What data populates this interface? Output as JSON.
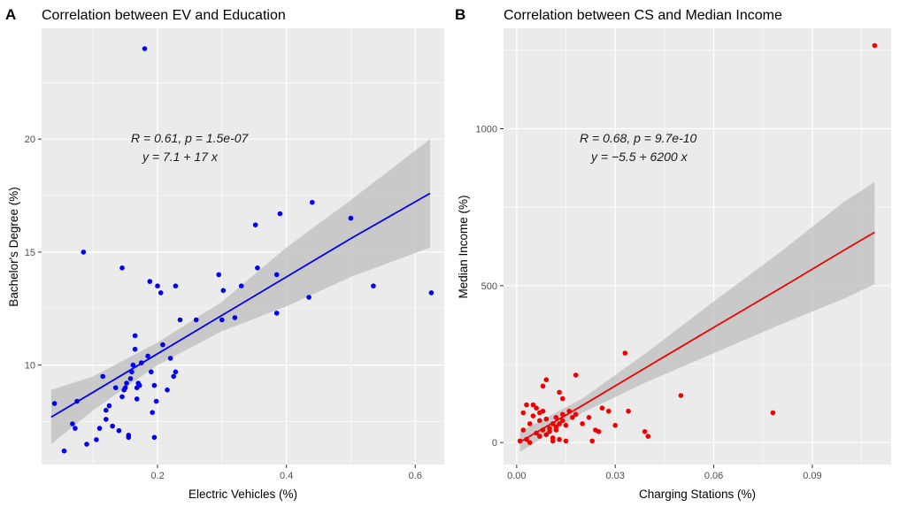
{
  "chart_data": [
    {
      "panel_tag": "A",
      "type": "scatter",
      "title": "Correlation between EV and Education",
      "xlabel": "Electric Vehicles (%)",
      "ylabel": "Bachelor's Degree (%)",
      "xlim": [
        0.02,
        0.645
      ],
      "ylim": [
        5.6,
        24.9
      ],
      "x_ticks": [
        0.2,
        0.4,
        0.6
      ],
      "x_tick_labels": [
        "0.2",
        "0.4",
        "0.6"
      ],
      "y_ticks": [
        10,
        15,
        20
      ],
      "y_tick_labels": [
        "10",
        "15",
        "20"
      ],
      "point_color": "#0000ee",
      "line_color": "#0000ee",
      "band_color": "#bdbdbd",
      "annotation": [
        "R = 0.61, p = 1.5e-07",
        "y = 7.1 + 17 x"
      ],
      "fit": {
        "x": [
          0.035,
          0.1,
          0.2,
          0.3,
          0.4,
          0.5,
          0.623
        ],
        "y": [
          7.7,
          8.8,
          10.5,
          12.2,
          13.9,
          15.6,
          17.6
        ],
        "lower": [
          6.5,
          8.0,
          10.0,
          11.5,
          12.6,
          13.9,
          15.2
        ],
        "upper": [
          8.9,
          9.5,
          11.0,
          12.8,
          15.2,
          17.3,
          20.0
        ]
      },
      "points": [
        {
          "x": 0.04,
          "y": 8.3
        },
        {
          "x": 0.055,
          "y": 6.2
        },
        {
          "x": 0.068,
          "y": 7.4
        },
        {
          "x": 0.072,
          "y": 7.2
        },
        {
          "x": 0.075,
          "y": 8.4
        },
        {
          "x": 0.085,
          "y": 15.0
        },
        {
          "x": 0.09,
          "y": 6.5
        },
        {
          "x": 0.105,
          "y": 6.7
        },
        {
          "x": 0.11,
          "y": 7.2
        },
        {
          "x": 0.115,
          "y": 9.5
        },
        {
          "x": 0.12,
          "y": 7.6
        },
        {
          "x": 0.12,
          "y": 8.0
        },
        {
          "x": 0.125,
          "y": 8.2
        },
        {
          "x": 0.13,
          "y": 7.3
        },
        {
          "x": 0.135,
          "y": 9.0
        },
        {
          "x": 0.14,
          "y": 7.1
        },
        {
          "x": 0.145,
          "y": 14.3
        },
        {
          "x": 0.145,
          "y": 8.6
        },
        {
          "x": 0.148,
          "y": 8.9
        },
        {
          "x": 0.15,
          "y": 9.0
        },
        {
          "x": 0.152,
          "y": 9.2
        },
        {
          "x": 0.155,
          "y": 6.9
        },
        {
          "x": 0.155,
          "y": 6.8
        },
        {
          "x": 0.158,
          "y": 9.4
        },
        {
          "x": 0.16,
          "y": 9.7
        },
        {
          "x": 0.162,
          "y": 10.0
        },
        {
          "x": 0.165,
          "y": 10.7
        },
        {
          "x": 0.165,
          "y": 11.3
        },
        {
          "x": 0.168,
          "y": 9.0
        },
        {
          "x": 0.168,
          "y": 8.5
        },
        {
          "x": 0.17,
          "y": 9.2
        },
        {
          "x": 0.172,
          "y": 9.1
        },
        {
          "x": 0.175,
          "y": 10.1
        },
        {
          "x": 0.18,
          "y": 24.0
        },
        {
          "x": 0.185,
          "y": 10.4
        },
        {
          "x": 0.188,
          "y": 13.7
        },
        {
          "x": 0.19,
          "y": 9.7
        },
        {
          "x": 0.192,
          "y": 7.9
        },
        {
          "x": 0.195,
          "y": 9.1
        },
        {
          "x": 0.195,
          "y": 6.8
        },
        {
          "x": 0.198,
          "y": 8.4
        },
        {
          "x": 0.2,
          "y": 13.5
        },
        {
          "x": 0.205,
          "y": 13.2
        },
        {
          "x": 0.208,
          "y": 10.9
        },
        {
          "x": 0.215,
          "y": 8.9
        },
        {
          "x": 0.22,
          "y": 10.3
        },
        {
          "x": 0.225,
          "y": 9.5
        },
        {
          "x": 0.228,
          "y": 13.5
        },
        {
          "x": 0.228,
          "y": 9.7
        },
        {
          "x": 0.235,
          "y": 12.0
        },
        {
          "x": 0.26,
          "y": 12.0
        },
        {
          "x": 0.295,
          "y": 14.0
        },
        {
          "x": 0.3,
          "y": 12.0
        },
        {
          "x": 0.302,
          "y": 13.3
        },
        {
          "x": 0.32,
          "y": 12.1
        },
        {
          "x": 0.33,
          "y": 13.5
        },
        {
          "x": 0.352,
          "y": 16.2
        },
        {
          "x": 0.355,
          "y": 14.3
        },
        {
          "x": 0.385,
          "y": 12.3
        },
        {
          "x": 0.385,
          "y": 14.0
        },
        {
          "x": 0.39,
          "y": 16.7
        },
        {
          "x": 0.435,
          "y": 13.0
        },
        {
          "x": 0.44,
          "y": 17.2
        },
        {
          "x": 0.5,
          "y": 16.5
        },
        {
          "x": 0.535,
          "y": 13.5
        },
        {
          "x": 0.625,
          "y": 13.2
        }
      ]
    },
    {
      "panel_tag": "B",
      "type": "scatter",
      "title": "Correlation between CS and Median Income",
      "xlabel": "Charging Stations (%)",
      "ylabel": "Median Income (%)",
      "xlim": [
        -0.004,
        0.114
      ],
      "ylim": [
        -70,
        1320
      ],
      "x_ticks": [
        0.0,
        0.03,
        0.06,
        0.09
      ],
      "x_tick_labels": [
        "0.00",
        "0.03",
        "0.06",
        "0.09"
      ],
      "y_ticks": [
        0,
        500,
        1000
      ],
      "y_tick_labels": [
        "0",
        "500",
        "1000"
      ],
      "point_color": "#ee0000",
      "line_color": "#ee0000",
      "band_color": "#bdbdbd",
      "annotation": [
        "R = 0.68, p = 9.7e-10",
        "y = −5.5 + 6200 x"
      ],
      "fit": {
        "x": [
          0.001,
          0.02,
          0.04,
          0.06,
          0.08,
          0.1,
          0.109
        ],
        "y": [
          2,
          118,
          243,
          367,
          490,
          615,
          670
        ],
        "lower": [
          -30,
          95,
          195,
          285,
          375,
          460,
          505
        ],
        "upper": [
          35,
          140,
          290,
          450,
          605,
          770,
          830
        ]
      },
      "points": [
        {
          "x": 0.001,
          "y": 5
        },
        {
          "x": 0.002,
          "y": 95
        },
        {
          "x": 0.002,
          "y": 40
        },
        {
          "x": 0.003,
          "y": 120
        },
        {
          "x": 0.003,
          "y": 10
        },
        {
          "x": 0.004,
          "y": 0
        },
        {
          "x": 0.004,
          "y": 60
        },
        {
          "x": 0.005,
          "y": 85
        },
        {
          "x": 0.005,
          "y": 120
        },
        {
          "x": 0.006,
          "y": 30
        },
        {
          "x": 0.006,
          "y": 110
        },
        {
          "x": 0.007,
          "y": 95
        },
        {
          "x": 0.007,
          "y": 70
        },
        {
          "x": 0.007,
          "y": 20
        },
        {
          "x": 0.008,
          "y": 40
        },
        {
          "x": 0.008,
          "y": 100
        },
        {
          "x": 0.008,
          "y": 180
        },
        {
          "x": 0.009,
          "y": 25
        },
        {
          "x": 0.009,
          "y": 75
        },
        {
          "x": 0.009,
          "y": 200
        },
        {
          "x": 0.01,
          "y": 45
        },
        {
          "x": 0.01,
          "y": 35
        },
        {
          "x": 0.011,
          "y": 60
        },
        {
          "x": 0.011,
          "y": 15
        },
        {
          "x": 0.011,
          "y": 5
        },
        {
          "x": 0.012,
          "y": 50
        },
        {
          "x": 0.012,
          "y": 80
        },
        {
          "x": 0.012,
          "y": 40
        },
        {
          "x": 0.013,
          "y": 60
        },
        {
          "x": 0.013,
          "y": 160
        },
        {
          "x": 0.013,
          "y": 10
        },
        {
          "x": 0.014,
          "y": 90
        },
        {
          "x": 0.014,
          "y": 140
        },
        {
          "x": 0.014,
          "y": 70
        },
        {
          "x": 0.015,
          "y": 55
        },
        {
          "x": 0.015,
          "y": 5
        },
        {
          "x": 0.016,
          "y": 100
        },
        {
          "x": 0.017,
          "y": 80
        },
        {
          "x": 0.018,
          "y": 90
        },
        {
          "x": 0.018,
          "y": 215
        },
        {
          "x": 0.02,
          "y": 60
        },
        {
          "x": 0.022,
          "y": 80
        },
        {
          "x": 0.023,
          "y": 5
        },
        {
          "x": 0.024,
          "y": 40
        },
        {
          "x": 0.025,
          "y": 35
        },
        {
          "x": 0.026,
          "y": 110
        },
        {
          "x": 0.028,
          "y": 100
        },
        {
          "x": 0.03,
          "y": 55
        },
        {
          "x": 0.033,
          "y": 285
        },
        {
          "x": 0.034,
          "y": 100
        },
        {
          "x": 0.039,
          "y": 35
        },
        {
          "x": 0.04,
          "y": 20
        },
        {
          "x": 0.05,
          "y": 150
        },
        {
          "x": 0.078,
          "y": 95
        },
        {
          "x": 0.109,
          "y": 1265
        }
      ]
    }
  ]
}
